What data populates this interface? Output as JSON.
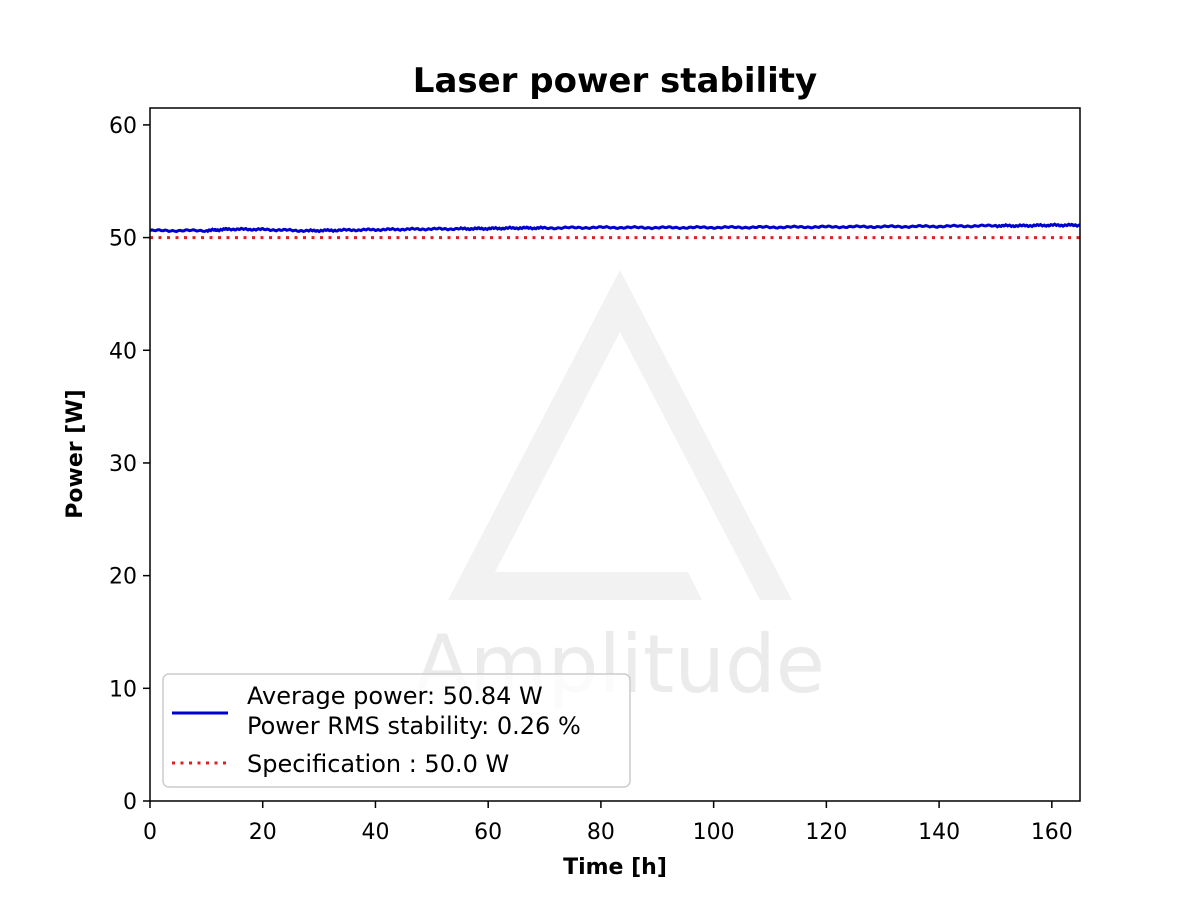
{
  "chart_data": {
    "type": "line",
    "title": "Laser power stability",
    "xlabel": "Time [h]",
    "ylabel": "Power [W]",
    "xlim": [
      0,
      165
    ],
    "ylim": [
      0,
      61.5
    ],
    "x_ticks": [
      0,
      20,
      40,
      60,
      80,
      100,
      120,
      140,
      160
    ],
    "y_ticks": [
      0,
      10,
      20,
      30,
      40,
      50,
      60
    ],
    "grid": false,
    "legend_position": "lower-left",
    "series": [
      {
        "name": "Average power: 50.84 W",
        "name_line2": "Power RMS stability: 0.26 %",
        "color": "#0000cc",
        "style": "solid",
        "x": [
          0,
          10,
          14,
          20,
          28,
          33,
          40,
          47,
          55,
          60,
          65,
          70,
          80,
          90,
          100,
          110,
          120,
          130,
          140,
          150,
          155,
          160,
          165
        ],
        "y": [
          50.62,
          50.62,
          50.75,
          50.72,
          50.6,
          50.65,
          50.7,
          50.75,
          50.78,
          50.8,
          50.85,
          50.85,
          50.9,
          50.88,
          50.9,
          50.92,
          50.95,
          50.97,
          51.0,
          51.05,
          51.05,
          51.1,
          51.1
        ]
      },
      {
        "name": "Specification : 50.0 W",
        "color": "#e02020",
        "style": "dotted",
        "x": [
          0,
          165
        ],
        "y": [
          50.0,
          50.0
        ]
      }
    ]
  },
  "watermark": {
    "text": "Amplitude"
  }
}
